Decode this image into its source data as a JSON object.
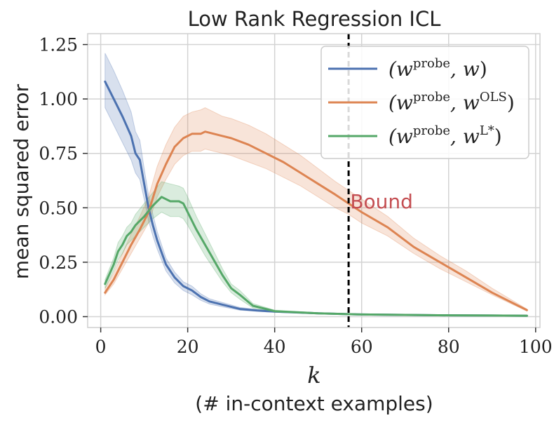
{
  "chart_data": {
    "type": "line",
    "title": "Low Rank Regression ICL",
    "xlabel": "k",
    "xlabel_sub": "(# in-context examples)",
    "ylabel": "mean squared error",
    "xlim": [
      -3,
      101
    ],
    "ylim": [
      -0.05,
      1.3
    ],
    "xticks": [
      0,
      20,
      40,
      60,
      80,
      100
    ],
    "xtick_labels": [
      "0",
      "20",
      "40",
      "60",
      "80",
      "100"
    ],
    "yticks": [
      0.0,
      0.25,
      0.5,
      0.75,
      1.0,
      1.25
    ],
    "ytick_labels": [
      "0.00",
      "0.25",
      "0.50",
      "0.75",
      "1.00",
      "1.25"
    ],
    "grid": true,
    "legend_position": "top-right",
    "colors": {
      "blue": "#4c72b0",
      "orange": "#dd8452",
      "green": "#55a868",
      "annotation": "#c44e52",
      "vline": "#000000"
    },
    "series": [
      {
        "name": "(w^probe, w)",
        "legend_base": "(w",
        "legend_sup": "probe",
        "legend_mid": ", w",
        "legend_sup2": "",
        "legend_end": ")",
        "color": "#4c72b0",
        "x": [
          1,
          3,
          5,
          7,
          8,
          9,
          10,
          11,
          12,
          13,
          15,
          17,
          19,
          21,
          23,
          25,
          28,
          32,
          36,
          40,
          50,
          60,
          70,
          80,
          90,
          98
        ],
        "values": [
          1.08,
          1.0,
          0.92,
          0.83,
          0.75,
          0.72,
          0.61,
          0.5,
          0.42,
          0.35,
          0.24,
          0.18,
          0.14,
          0.12,
          0.09,
          0.07,
          0.055,
          0.035,
          0.028,
          0.023,
          0.015,
          0.01,
          0.008,
          0.006,
          0.005,
          0.004
        ],
        "lower": [
          0.96,
          0.88,
          0.8,
          0.72,
          0.66,
          0.63,
          0.54,
          0.44,
          0.37,
          0.31,
          0.21,
          0.155,
          0.12,
          0.1,
          0.075,
          0.058,
          0.045,
          0.03,
          0.024,
          0.02,
          0.013,
          0.009,
          0.007,
          0.005,
          0.004,
          0.003
        ],
        "upper": [
          1.21,
          1.13,
          1.04,
          0.94,
          0.85,
          0.81,
          0.68,
          0.56,
          0.47,
          0.39,
          0.27,
          0.205,
          0.16,
          0.14,
          0.105,
          0.082,
          0.065,
          0.042,
          0.033,
          0.027,
          0.017,
          0.012,
          0.009,
          0.007,
          0.006,
          0.005
        ]
      },
      {
        "name": "(w^probe, w^OLS)",
        "legend_base": "(w",
        "legend_sup": "probe",
        "legend_mid": ", w",
        "legend_sup2": "OLS",
        "legend_end": ")",
        "color": "#dd8452",
        "x": [
          1,
          3,
          5,
          7,
          9,
          11,
          13,
          15,
          17,
          19,
          21,
          23,
          24,
          26,
          28,
          30,
          34,
          38,
          42,
          46,
          50,
          54,
          57,
          60,
          66,
          72,
          78,
          84,
          90,
          98
        ],
        "values": [
          0.11,
          0.17,
          0.25,
          0.33,
          0.4,
          0.48,
          0.61,
          0.7,
          0.78,
          0.82,
          0.84,
          0.84,
          0.85,
          0.84,
          0.83,
          0.82,
          0.79,
          0.75,
          0.71,
          0.66,
          0.61,
          0.56,
          0.52,
          0.48,
          0.41,
          0.32,
          0.25,
          0.18,
          0.11,
          0.03
        ],
        "lower": [
          0.1,
          0.15,
          0.22,
          0.29,
          0.36,
          0.43,
          0.55,
          0.63,
          0.7,
          0.74,
          0.76,
          0.76,
          0.77,
          0.76,
          0.75,
          0.74,
          0.71,
          0.68,
          0.64,
          0.6,
          0.55,
          0.5,
          0.47,
          0.43,
          0.37,
          0.29,
          0.22,
          0.16,
          0.1,
          0.025
        ],
        "upper": [
          0.13,
          0.2,
          0.29,
          0.38,
          0.46,
          0.55,
          0.69,
          0.79,
          0.87,
          0.92,
          0.94,
          0.95,
          0.96,
          0.94,
          0.92,
          0.91,
          0.88,
          0.84,
          0.79,
          0.74,
          0.68,
          0.62,
          0.58,
          0.54,
          0.46,
          0.36,
          0.28,
          0.21,
          0.13,
          0.035
        ]
      },
      {
        "name": "(w^probe, w^L*)",
        "legend_base": "(w",
        "legend_sup": "probe",
        "legend_mid": ", w",
        "legend_sup2": "L*",
        "legend_end": ")",
        "color": "#55a868",
        "x": [
          1,
          3,
          4,
          5,
          6,
          7,
          8,
          10,
          12,
          14,
          16,
          18,
          19,
          20,
          22,
          24,
          26,
          28,
          30,
          32,
          35,
          40,
          50,
          60,
          70,
          80,
          90,
          98
        ],
        "values": [
          0.15,
          0.24,
          0.3,
          0.33,
          0.37,
          0.39,
          0.42,
          0.46,
          0.51,
          0.55,
          0.53,
          0.53,
          0.52,
          0.48,
          0.4,
          0.33,
          0.26,
          0.19,
          0.13,
          0.1,
          0.05,
          0.025,
          0.015,
          0.01,
          0.008,
          0.006,
          0.005,
          0.004
        ],
        "lower": [
          0.13,
          0.21,
          0.26,
          0.29,
          0.33,
          0.35,
          0.37,
          0.41,
          0.45,
          0.48,
          0.46,
          0.46,
          0.45,
          0.42,
          0.35,
          0.28,
          0.22,
          0.16,
          0.11,
          0.08,
          0.04,
          0.02,
          0.012,
          0.008,
          0.006,
          0.005,
          0.004,
          0.003
        ],
        "upper": [
          0.17,
          0.27,
          0.34,
          0.37,
          0.41,
          0.43,
          0.47,
          0.52,
          0.57,
          0.62,
          0.61,
          0.6,
          0.59,
          0.55,
          0.46,
          0.38,
          0.3,
          0.22,
          0.15,
          0.12,
          0.06,
          0.03,
          0.018,
          0.012,
          0.01,
          0.008,
          0.006,
          0.005
        ]
      }
    ],
    "annotations": [
      {
        "type": "vline",
        "x": 57,
        "style": "dashed",
        "color": "#000000"
      },
      {
        "type": "text",
        "text": "Bound",
        "x": 58,
        "y": 0.53,
        "color": "#c44e52"
      }
    ]
  }
}
